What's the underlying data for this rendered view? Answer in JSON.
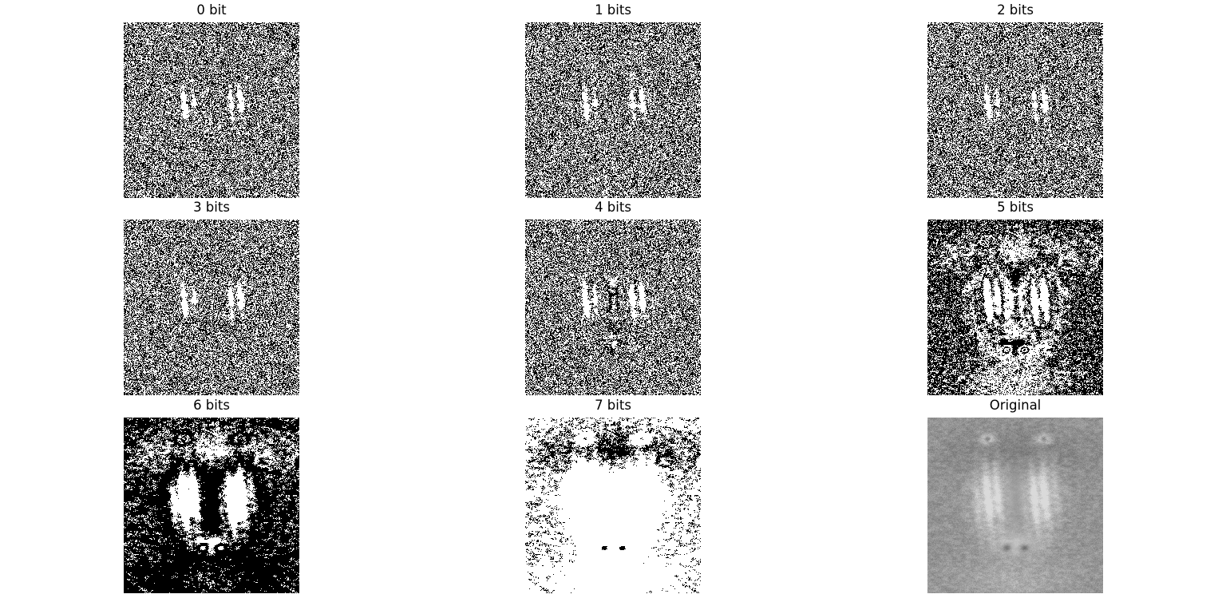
{
  "figure": {
    "panels": [
      {
        "id": "p0",
        "title": "0 bit",
        "bit": 0
      },
      {
        "id": "p1",
        "title": "1 bits",
        "bit": 1
      },
      {
        "id": "p2",
        "title": "2 bits",
        "bit": 2
      },
      {
        "id": "p3",
        "title": "3 bits",
        "bit": 3
      },
      {
        "id": "p4",
        "title": "4 bits",
        "bit": 4
      },
      {
        "id": "p5",
        "title": "5 bits",
        "bit": 5
      },
      {
        "id": "p6",
        "title": "6 bits",
        "bit": 6
      },
      {
        "id": "p7",
        "title": "7 bits",
        "bit": 7
      },
      {
        "id": "orig",
        "title": "Original",
        "bit": null
      }
    ]
  }
}
